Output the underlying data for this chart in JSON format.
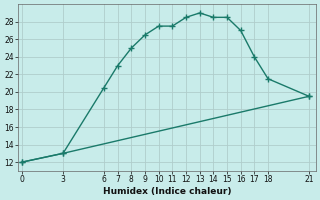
{
  "line1_x": [
    0,
    3,
    6,
    7,
    8,
    9,
    10,
    11,
    12,
    13,
    14,
    15,
    16,
    17,
    18,
    21
  ],
  "line1_y": [
    12,
    13,
    20.5,
    23,
    25,
    26.5,
    27.5,
    27.5,
    28.5,
    29,
    28.5,
    28.5,
    27,
    24,
    21.5,
    19.5
  ],
  "line2_x": [
    0,
    3,
    21
  ],
  "line2_y": [
    12,
    13,
    19.5
  ],
  "color": "#1a7a6a",
  "bg_color": "#c8ecea",
  "grid_color_major": "#b0cdcc",
  "grid_color_minor": "#d8ecea",
  "xlabel": "Humidex (Indice chaleur)",
  "xticks": [
    0,
    3,
    6,
    7,
    8,
    9,
    10,
    11,
    12,
    13,
    14,
    15,
    16,
    17,
    18,
    21
  ],
  "yticks": [
    12,
    14,
    16,
    18,
    20,
    22,
    24,
    26,
    28
  ],
  "xlim": [
    -0.3,
    21.5
  ],
  "ylim": [
    11.0,
    30.0
  ],
  "marker": "+",
  "markersize": 5,
  "linewidth": 1.0
}
